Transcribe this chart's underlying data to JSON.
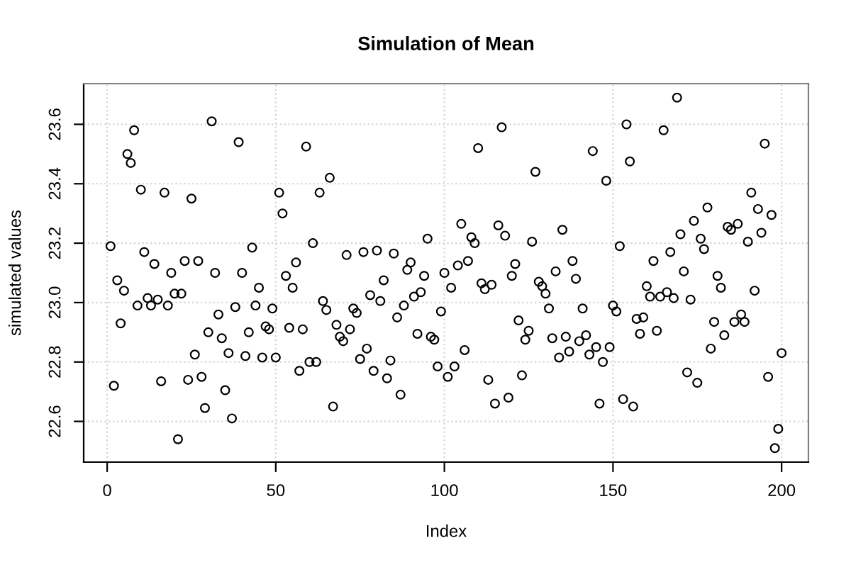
{
  "chart_data": {
    "type": "scatter",
    "title": "Simulation of Mean",
    "xlabel": "Index",
    "ylabel": "simulated values",
    "x": [
      1,
      2,
      3,
      4,
      5,
      6,
      7,
      8,
      9,
      10,
      11,
      12,
      13,
      14,
      15,
      16,
      17,
      18,
      19,
      20,
      21,
      22,
      23,
      24,
      25,
      26,
      27,
      28,
      29,
      30,
      31,
      32,
      33,
      34,
      35,
      36,
      37,
      38,
      39,
      40,
      41,
      42,
      43,
      44,
      45,
      46,
      47,
      48,
      49,
      50,
      51,
      52,
      53,
      54,
      55,
      56,
      57,
      58,
      59,
      60,
      61,
      62,
      63,
      64,
      65,
      66,
      67,
      68,
      69,
      70,
      71,
      72,
      73,
      74,
      75,
      76,
      77,
      78,
      79,
      80,
      81,
      82,
      83,
      84,
      85,
      86,
      87,
      88,
      89,
      90,
      91,
      92,
      93,
      94,
      95,
      96,
      97,
      98,
      99,
      100,
      101,
      102,
      103,
      104,
      105,
      106,
      107,
      108,
      109,
      110,
      111,
      112,
      113,
      114,
      115,
      116,
      117,
      118,
      119,
      120,
      121,
      122,
      123,
      124,
      125,
      126,
      127,
      128,
      129,
      130,
      131,
      132,
      133,
      134,
      135,
      136,
      137,
      138,
      139,
      140,
      141,
      142,
      143,
      144,
      145,
      146,
      147,
      148,
      149,
      150,
      151,
      152,
      153,
      154,
      155,
      156,
      157,
      158,
      159,
      160,
      161,
      162,
      163,
      164,
      165,
      166,
      167,
      168,
      169,
      170,
      171,
      172,
      173,
      174,
      175,
      176,
      177,
      178,
      179,
      180,
      181,
      182,
      183,
      184,
      185,
      186,
      187,
      188,
      189,
      190,
      191,
      192,
      193,
      194,
      195,
      196,
      197,
      198,
      199,
      200
    ],
    "values": [
      23.19,
      22.72,
      23.075,
      22.93,
      23.04,
      23.5,
      23.47,
      23.58,
      22.99,
      23.38,
      23.17,
      23.015,
      22.99,
      23.13,
      23.01,
      22.735,
      23.37,
      22.99,
      23.1,
      23.03,
      22.54,
      23.03,
      23.14,
      22.74,
      23.35,
      22.825,
      23.14,
      22.75,
      22.645,
      22.9,
      23.61,
      23.1,
      22.96,
      22.88,
      22.705,
      22.83,
      22.61,
      22.985,
      23.54,
      23.1,
      22.82,
      22.9,
      23.185,
      22.99,
      23.05,
      22.815,
      22.92,
      22.91,
      22.98,
      22.815,
      23.37,
      23.3,
      23.09,
      22.915,
      23.05,
      23.135,
      22.77,
      22.91,
      23.525,
      22.8,
      23.2,
      22.8,
      23.37,
      23.005,
      22.975,
      23.42,
      22.65,
      22.925,
      22.885,
      22.87,
      23.16,
      22.91,
      22.98,
      22.965,
      22.81,
      23.17,
      22.845,
      23.025,
      22.77,
      23.175,
      23.005,
      23.075,
      22.745,
      22.805,
      23.165,
      22.95,
      22.69,
      22.99,
      23.11,
      23.135,
      23.02,
      22.895,
      23.035,
      23.09,
      23.215,
      22.885,
      22.875,
      22.785,
      22.97,
      23.1,
      22.75,
      23.05,
      22.785,
      23.125,
      23.265,
      22.84,
      23.14,
      23.22,
      23.2,
      23.52,
      23.065,
      23.045,
      22.74,
      23.06,
      22.66,
      23.26,
      23.59,
      23.225,
      22.68,
      23.09,
      23.13,
      22.94,
      22.755,
      22.875,
      22.905,
      23.205,
      23.44,
      23.07,
      23.055,
      23.03,
      22.98,
      22.88,
      23.105,
      22.815,
      23.245,
      22.885,
      22.835,
      23.14,
      23.08,
      22.87,
      22.98,
      22.89,
      22.825,
      23.51,
      22.85,
      22.66,
      22.8,
      23.41,
      22.85,
      22.99,
      22.97,
      23.19,
      22.675,
      23.6,
      23.475,
      22.65,
      22.945,
      22.895,
      22.95,
      23.055,
      23.02,
      23.14,
      22.905,
      23.02,
      23.58,
      23.035,
      23.17,
      23.015,
      23.69,
      23.23,
      23.105,
      22.765,
      23.01,
      23.275,
      22.73,
      23.215,
      23.18,
      23.32,
      22.845,
      22.935,
      23.09,
      23.05,
      22.89,
      23.255,
      23.245,
      22.935,
      23.265,
      22.96,
      22.935,
      23.205,
      23.37,
      23.04,
      23.315,
      23.235,
      23.535,
      22.75,
      23.295,
      22.51,
      22.575,
      22.83
    ],
    "color": "#000000",
    "marker": "circle",
    "xlim": [
      -6.96,
      207.96
    ],
    "xticks": [
      0,
      50,
      100,
      150,
      200
    ],
    "ylim": [
      22.463,
      23.737
    ],
    "yticks": [
      22.6,
      22.8,
      {
        "value": 23,
        "label": "23.0"
      },
      23.2,
      23.4,
      23.6
    ],
    "grid": true
  }
}
